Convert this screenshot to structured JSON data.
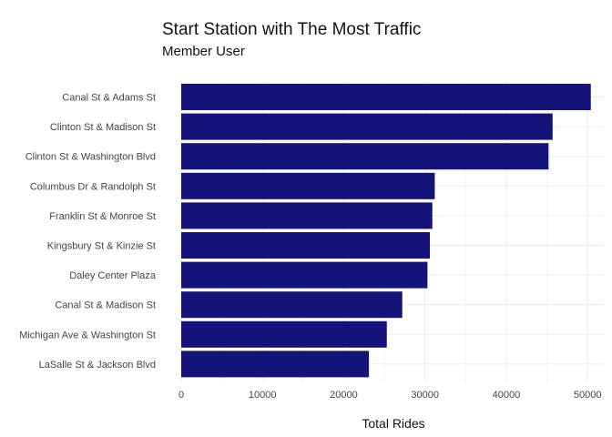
{
  "chart_data": {
    "type": "bar",
    "orientation": "horizontal",
    "title": "Start Station with The Most Traffic",
    "subtitle": "Member User",
    "xlabel": "Total Rides",
    "ylabel": "",
    "xlim": [
      0,
      52000
    ],
    "x_ticks": [
      0,
      10000,
      20000,
      30000,
      40000,
      50000
    ],
    "x_tick_labels": [
      "0",
      "10000",
      "20000",
      "30000",
      "40000",
      "50000"
    ],
    "categories": [
      "Canal St & Adams St",
      "Clinton St & Madison St",
      "Clinton St & Washington Blvd",
      "Columbus Dr & Randolph St",
      "Franklin St & Monroe St",
      "Kingsbury St & Kinzie St",
      "Daley Center Plaza",
      "Canal St & Madison St",
      "Michigan Ave & Washington St",
      "LaSalle St & Jackson Blvd"
    ],
    "values": [
      50400,
      45700,
      45200,
      31200,
      30900,
      30600,
      30300,
      27200,
      25300,
      23100
    ],
    "bar_color": "#13137a",
    "grid": true,
    "legend": "none"
  }
}
